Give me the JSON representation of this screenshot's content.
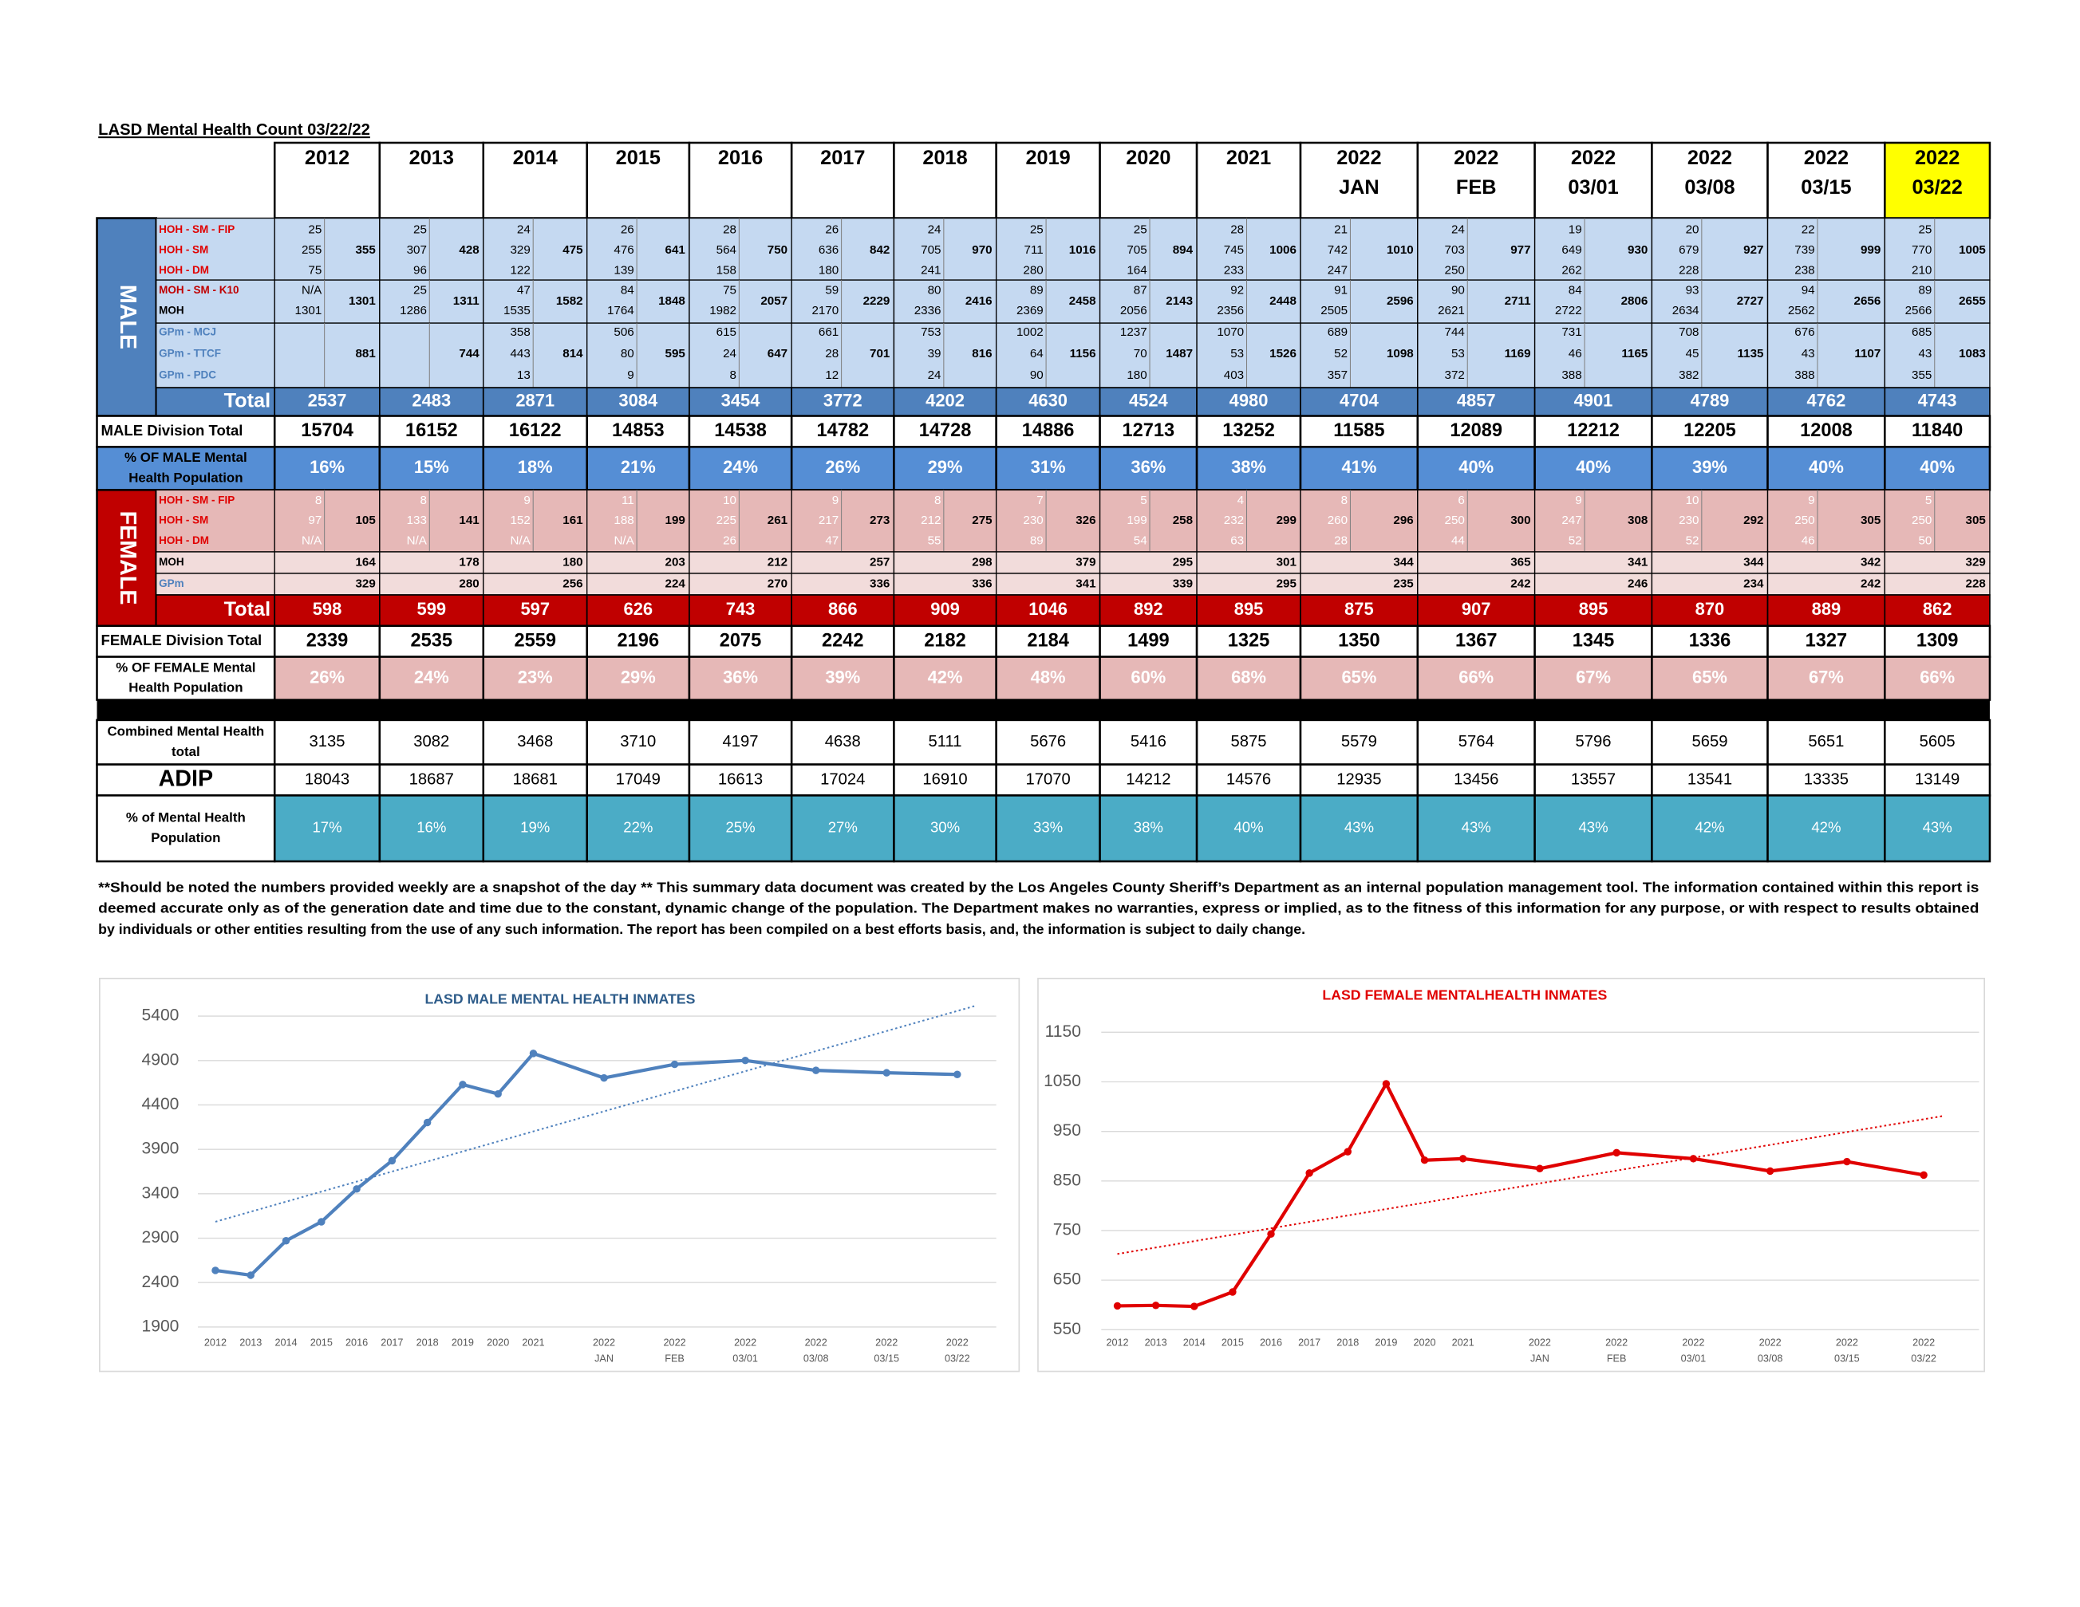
{
  "title": "LASD Mental Health Count 03/22/22",
  "columns": [
    [
      "2012"
    ],
    [
      "2013"
    ],
    [
      "2014"
    ],
    [
      "2015"
    ],
    [
      "2016"
    ],
    [
      "2017"
    ],
    [
      "2018"
    ],
    [
      "2019"
    ],
    [
      "2020"
    ],
    [
      "2021"
    ],
    [
      "2022",
      "JAN"
    ],
    [
      "2022",
      "FEB"
    ],
    [
      "2022",
      "03/01"
    ],
    [
      "2022",
      "03/08"
    ],
    [
      "2022",
      "03/15"
    ],
    [
      "2022",
      "03/22"
    ]
  ],
  "male": {
    "label": "MALE",
    "row_labels": [
      "HOH - SM - FIP",
      "HOH - SM",
      "HOH - DM",
      "MOH - SM - K10",
      "MOH",
      "GPm - MCJ",
      "GPm - TTCF",
      "GPm - PDC"
    ],
    "detail": [
      [
        25,
        255,
        75,
        "N/A",
        1301,
        null,
        null,
        null
      ],
      [
        25,
        307,
        96,
        25,
        1286,
        null,
        null,
        null
      ],
      [
        24,
        329,
        122,
        47,
        1535,
        358,
        443,
        13
      ],
      [
        26,
        476,
        139,
        84,
        1764,
        506,
        80,
        9
      ],
      [
        28,
        564,
        158,
        75,
        1982,
        615,
        24,
        8
      ],
      [
        26,
        636,
        180,
        59,
        2170,
        661,
        28,
        12
      ],
      [
        24,
        705,
        241,
        80,
        2336,
        753,
        39,
        24
      ],
      [
        25,
        711,
        280,
        89,
        2369,
        1002,
        64,
        90
      ],
      [
        25,
        705,
        164,
        87,
        2056,
        1237,
        70,
        180
      ],
      [
        28,
        745,
        233,
        92,
        2356,
        1070,
        53,
        403
      ],
      [
        21,
        742,
        247,
        91,
        2505,
        689,
        52,
        357
      ],
      [
        24,
        703,
        250,
        90,
        2621,
        744,
        53,
        372
      ],
      [
        19,
        649,
        262,
        84,
        2722,
        731,
        46,
        388
      ],
      [
        20,
        679,
        228,
        93,
        2634,
        708,
        45,
        382
      ],
      [
        22,
        739,
        238,
        94,
        2562,
        676,
        43,
        388
      ],
      [
        25,
        770,
        210,
        89,
        2566,
        685,
        43,
        355
      ]
    ],
    "subtotals": [
      [
        355,
        1301,
        881
      ],
      [
        428,
        1311,
        744
      ],
      [
        475,
        1582,
        814
      ],
      [
        641,
        1848,
        595
      ],
      [
        750,
        2057,
        647
      ],
      [
        842,
        2229,
        701
      ],
      [
        970,
        2416,
        816
      ],
      [
        1016,
        2458,
        1156
      ],
      [
        894,
        2143,
        1487
      ],
      [
        1006,
        2448,
        1526
      ],
      [
        1010,
        2596,
        1098
      ],
      [
        977,
        2711,
        1169
      ],
      [
        930,
        2806,
        1165
      ],
      [
        927,
        2727,
        1135
      ],
      [
        999,
        2656,
        1107
      ],
      [
        1005,
        2655,
        1083
      ]
    ],
    "total_label": "Total",
    "totals": [
      2537,
      2483,
      2871,
      3084,
      3454,
      3772,
      4202,
      4630,
      4524,
      4980,
      4704,
      4857,
      4901,
      4789,
      4762,
      4743
    ]
  },
  "male_division": {
    "label": [
      "MALE Division Total"
    ],
    "values": [
      15704,
      16152,
      16122,
      14853,
      14538,
      14782,
      14728,
      14886,
      12713,
      13252,
      11585,
      12089,
      12212,
      12205,
      12008,
      11840
    ]
  },
  "male_pct": {
    "label": [
      "% OF MALE Mental",
      "Health Population"
    ],
    "values": [
      "16%",
      "15%",
      "18%",
      "21%",
      "24%",
      "26%",
      "29%",
      "31%",
      "36%",
      "38%",
      "41%",
      "40%",
      "40%",
      "39%",
      "40%",
      "40%"
    ]
  },
  "female": {
    "label": "FEMALE",
    "row_labels": [
      "HOH - SM - FIP",
      "HOH - SM",
      "HOH - DM",
      "MOH",
      "GPm"
    ],
    "detail": [
      [
        8,
        97,
        "N/A"
      ],
      [
        8,
        133,
        "N/A"
      ],
      [
        9,
        152,
        "N/A"
      ],
      [
        11,
        188,
        "N/A"
      ],
      [
        10,
        225,
        26
      ],
      [
        9,
        217,
        47
      ],
      [
        8,
        212,
        55
      ],
      [
        7,
        230,
        89
      ],
      [
        5,
        199,
        54
      ],
      [
        4,
        232,
        63
      ],
      [
        8,
        260,
        28
      ],
      [
        6,
        250,
        44
      ],
      [
        9,
        247,
        52
      ],
      [
        10,
        230,
        52
      ],
      [
        9,
        250,
        46
      ],
      [
        5,
        250,
        50
      ]
    ],
    "subtotals": [
      [
        105,
        164,
        329
      ],
      [
        141,
        178,
        280
      ],
      [
        161,
        180,
        256
      ],
      [
        199,
        203,
        224
      ],
      [
        261,
        212,
        270
      ],
      [
        273,
        257,
        336
      ],
      [
        275,
        298,
        336
      ],
      [
        326,
        379,
        341
      ],
      [
        258,
        295,
        339
      ],
      [
        299,
        301,
        295
      ],
      [
        296,
        344,
        235
      ],
      [
        300,
        365,
        242
      ],
      [
        308,
        341,
        246
      ],
      [
        292,
        344,
        234
      ],
      [
        305,
        342,
        242
      ],
      [
        305,
        329,
        228
      ]
    ],
    "total_label": "Total",
    "totals": [
      598,
      599,
      597,
      626,
      743,
      866,
      909,
      1046,
      892,
      895,
      875,
      907,
      895,
      870,
      889,
      862
    ]
  },
  "female_division": {
    "label": [
      "FEMALE Division Total"
    ],
    "values": [
      2339,
      2535,
      2559,
      2196,
      2075,
      2242,
      2182,
      2184,
      1499,
      1325,
      1350,
      1367,
      1345,
      1336,
      1327,
      1309
    ]
  },
  "female_pct": {
    "label": [
      "% OF FEMALE Mental",
      "Health Population"
    ],
    "values": [
      "26%",
      "24%",
      "23%",
      "29%",
      "36%",
      "39%",
      "42%",
      "48%",
      "60%",
      "68%",
      "65%",
      "66%",
      "67%",
      "65%",
      "67%",
      "66%"
    ]
  },
  "combined": {
    "label": [
      "Combined Mental Health",
      "total"
    ],
    "values": [
      3135,
      3082,
      3468,
      3710,
      4197,
      4638,
      5111,
      5676,
      5416,
      5875,
      5579,
      5764,
      5796,
      5659,
      5651,
      5605
    ]
  },
  "adip": {
    "label": [
      "ADIP"
    ],
    "values": [
      18043,
      18687,
      18681,
      17049,
      16613,
      17024,
      16910,
      17070,
      14212,
      14576,
      12935,
      13456,
      13557,
      13541,
      13335,
      13149
    ]
  },
  "mh_pct": {
    "label": [
      "% of Mental Health",
      "Population"
    ],
    "values": [
      "17%",
      "16%",
      "19%",
      "22%",
      "25%",
      "27%",
      "30%",
      "33%",
      "38%",
      "40%",
      "43%",
      "43%",
      "43%",
      "42%",
      "42%",
      "43%"
    ]
  },
  "footnote": [
    "**Should be noted the numbers provided weekly are a snapshot of the day ** This summary data document was created by the Los Angeles County Sheriff’s Department as an internal population management tool.  The information contained within this report is",
    "deemed accurate only as of the generation date and time due to the constant, dynamic change of the population.  The Department makes no warranties, express or implied, as to the fitness of this information for any purpose, or with respect to results obtained",
    "by individuals or other entities resulting from the use of any such information.  The report has been compiled on a best efforts basis, and, the information is subject to daily change."
  ],
  "chart_data": [
    {
      "type": "line",
      "title": "LASD MALE MENTAL HEALTH INMATES",
      "color": "#4f81bd",
      "trendline": true,
      "grid": true,
      "categories": [
        [
          "2012"
        ],
        [
          "2013"
        ],
        [
          "2014"
        ],
        [
          "2015"
        ],
        [
          "2016"
        ],
        [
          "2017"
        ],
        [
          "2018"
        ],
        [
          "2019"
        ],
        [
          "2020"
        ],
        [
          "2021"
        ],
        [
          "2022",
          "JAN"
        ],
        [
          "2022",
          "FEB"
        ],
        [
          "2022",
          "03/01"
        ],
        [
          "2022",
          "03/08"
        ],
        [
          "2022",
          "03/15"
        ],
        [
          "2022",
          "03/22"
        ]
      ],
      "values": [
        2537,
        2483,
        2871,
        3084,
        3454,
        3772,
        4202,
        4630,
        4524,
        4980,
        4704,
        4857,
        4901,
        4789,
        4762,
        4743
      ],
      "ylim": [
        1900,
        5400
      ],
      "yticks": [
        1900,
        2400,
        2900,
        3400,
        3900,
        4400,
        4900,
        5400
      ]
    },
    {
      "type": "line",
      "title": "LASD FEMALE MENTALHEALTH INMATES",
      "color": "#e00000",
      "trendline": true,
      "grid": true,
      "categories": [
        [
          "2012"
        ],
        [
          "2013"
        ],
        [
          "2014"
        ],
        [
          "2015"
        ],
        [
          "2016"
        ],
        [
          "2017"
        ],
        [
          "2018"
        ],
        [
          "2019"
        ],
        [
          "2020"
        ],
        [
          "2021"
        ],
        [
          "2022",
          "JAN"
        ],
        [
          "2022",
          "FEB"
        ],
        [
          "2022",
          "03/01"
        ],
        [
          "2022",
          "03/08"
        ],
        [
          "2022",
          "03/15"
        ],
        [
          "2022",
          "03/22"
        ]
      ],
      "values": [
        598,
        599,
        597,
        626,
        743,
        866,
        909,
        1046,
        892,
        895,
        875,
        907,
        895,
        870,
        889,
        862
      ],
      "ylim": [
        550,
        1150
      ],
      "yticks": [
        550,
        650,
        750,
        850,
        950,
        1050,
        1150
      ]
    }
  ]
}
